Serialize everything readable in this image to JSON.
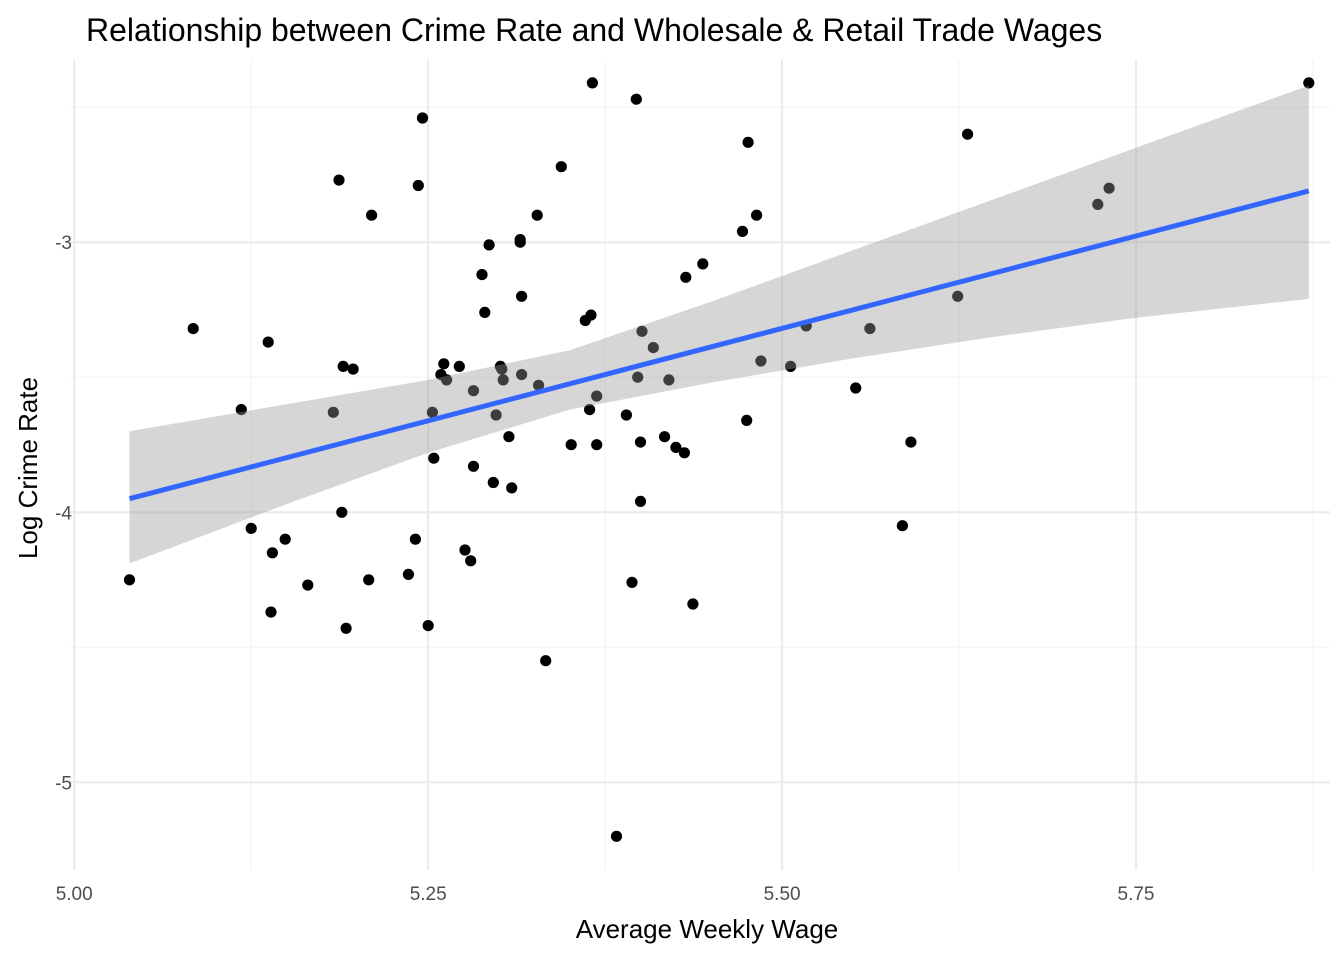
{
  "chart_data": {
    "type": "scatter",
    "title": "Relationship between Crime Rate and Wholesale & Retail Trade Wages",
    "xlabel": "Average Weekly Wage",
    "ylabel": "Log Crime Rate",
    "xlim": [
      4.997,
      5.887
    ],
    "ylim": [
      -5.325,
      -2.325
    ],
    "x_ticks": [
      5.0,
      5.25,
      5.5,
      5.75
    ],
    "x_tick_labels": [
      "5.00",
      "5.25",
      "5.50",
      "5.75"
    ],
    "y_ticks": [
      -3,
      -4,
      -5
    ],
    "y_tick_labels": [
      "-3",
      "-4",
      "-5"
    ],
    "grid": true,
    "legend": "none",
    "point_color": "#000000",
    "line_color": "#3366ff",
    "band_color": "#999999",
    "points": [
      [
        5.039,
        -4.25
      ],
      [
        5.084,
        -3.32
      ],
      [
        5.118,
        -3.62
      ],
      [
        5.125,
        -4.06
      ],
      [
        5.137,
        -3.37
      ],
      [
        5.139,
        -4.37
      ],
      [
        5.14,
        -4.15
      ],
      [
        5.149,
        -4.1
      ],
      [
        5.165,
        -4.27
      ],
      [
        5.183,
        -3.63
      ],
      [
        5.187,
        -2.77
      ],
      [
        5.189,
        -4.0
      ],
      [
        5.19,
        -3.46
      ],
      [
        5.192,
        -4.43
      ],
      [
        5.197,
        -3.47
      ],
      [
        5.208,
        -4.25
      ],
      [
        5.21,
        -2.9
      ],
      [
        5.236,
        -4.23
      ],
      [
        5.241,
        -4.1
      ],
      [
        5.243,
        -2.79
      ],
      [
        5.246,
        -2.54
      ],
      [
        5.25,
        -4.42
      ],
      [
        5.253,
        -3.63
      ],
      [
        5.254,
        -3.8
      ],
      [
        5.259,
        -3.49
      ],
      [
        5.261,
        -3.45
      ],
      [
        5.263,
        -3.51
      ],
      [
        5.272,
        -3.46
      ],
      [
        5.276,
        -4.14
      ],
      [
        5.28,
        -4.18
      ],
      [
        5.282,
        -3.83
      ],
      [
        5.282,
        -3.55
      ],
      [
        5.288,
        -3.12
      ],
      [
        5.29,
        -3.26
      ],
      [
        5.293,
        -3.01
      ],
      [
        5.296,
        -3.89
      ],
      [
        5.298,
        -3.64
      ],
      [
        5.301,
        -3.46
      ],
      [
        5.302,
        -3.47
      ],
      [
        5.303,
        -3.51
      ],
      [
        5.307,
        -3.72
      ],
      [
        5.309,
        -3.91
      ],
      [
        5.315,
        -2.99
      ],
      [
        5.315,
        -3.0
      ],
      [
        5.316,
        -3.2
      ],
      [
        5.316,
        -3.49
      ],
      [
        5.327,
        -2.9
      ],
      [
        5.328,
        -3.53
      ],
      [
        5.333,
        -4.55
      ],
      [
        5.344,
        -2.72
      ],
      [
        5.351,
        -3.75
      ],
      [
        5.361,
        -3.29
      ],
      [
        5.364,
        -3.62
      ],
      [
        5.365,
        -3.27
      ],
      [
        5.366,
        -2.41
      ],
      [
        5.369,
        -3.57
      ],
      [
        5.369,
        -3.75
      ],
      [
        5.383,
        -5.2
      ],
      [
        5.39,
        -3.64
      ],
      [
        5.394,
        -4.26
      ],
      [
        5.397,
        -2.47
      ],
      [
        5.398,
        -3.5
      ],
      [
        5.4,
        -3.74
      ],
      [
        5.4,
        -3.96
      ],
      [
        5.401,
        -3.33
      ],
      [
        5.409,
        -3.39
      ],
      [
        5.417,
        -3.72
      ],
      [
        5.42,
        -3.51
      ],
      [
        5.425,
        -3.76
      ],
      [
        5.431,
        -3.78
      ],
      [
        5.432,
        -3.13
      ],
      [
        5.437,
        -4.34
      ],
      [
        5.444,
        -3.08
      ],
      [
        5.472,
        -2.96
      ],
      [
        5.475,
        -3.66
      ],
      [
        5.476,
        -2.63
      ],
      [
        5.482,
        -2.9
      ],
      [
        5.485,
        -3.44
      ],
      [
        5.506,
        -3.46
      ],
      [
        5.517,
        -3.31
      ],
      [
        5.552,
        -3.54
      ],
      [
        5.562,
        -3.32
      ],
      [
        5.585,
        -4.05
      ],
      [
        5.591,
        -3.74
      ],
      [
        5.624,
        -3.2
      ],
      [
        5.631,
        -2.6
      ],
      [
        5.723,
        -2.86
      ],
      [
        5.731,
        -2.8
      ],
      [
        5.872,
        -2.41
      ]
    ],
    "fit_line": {
      "x": [
        5.039,
        5.872
      ],
      "y": [
        -3.95,
        -2.81
      ]
    },
    "confidence_band": {
      "x": [
        5.039,
        5.15,
        5.25,
        5.35,
        5.45,
        5.55,
        5.65,
        5.75,
        5.872
      ],
      "upper": [
        -3.7,
        -3.6,
        -3.51,
        -3.4,
        -3.22,
        -3.03,
        -2.84,
        -2.65,
        -2.42
      ],
      "lower": [
        -4.19,
        -3.97,
        -3.78,
        -3.62,
        -3.52,
        -3.43,
        -3.35,
        -3.28,
        -3.21
      ]
    }
  }
}
